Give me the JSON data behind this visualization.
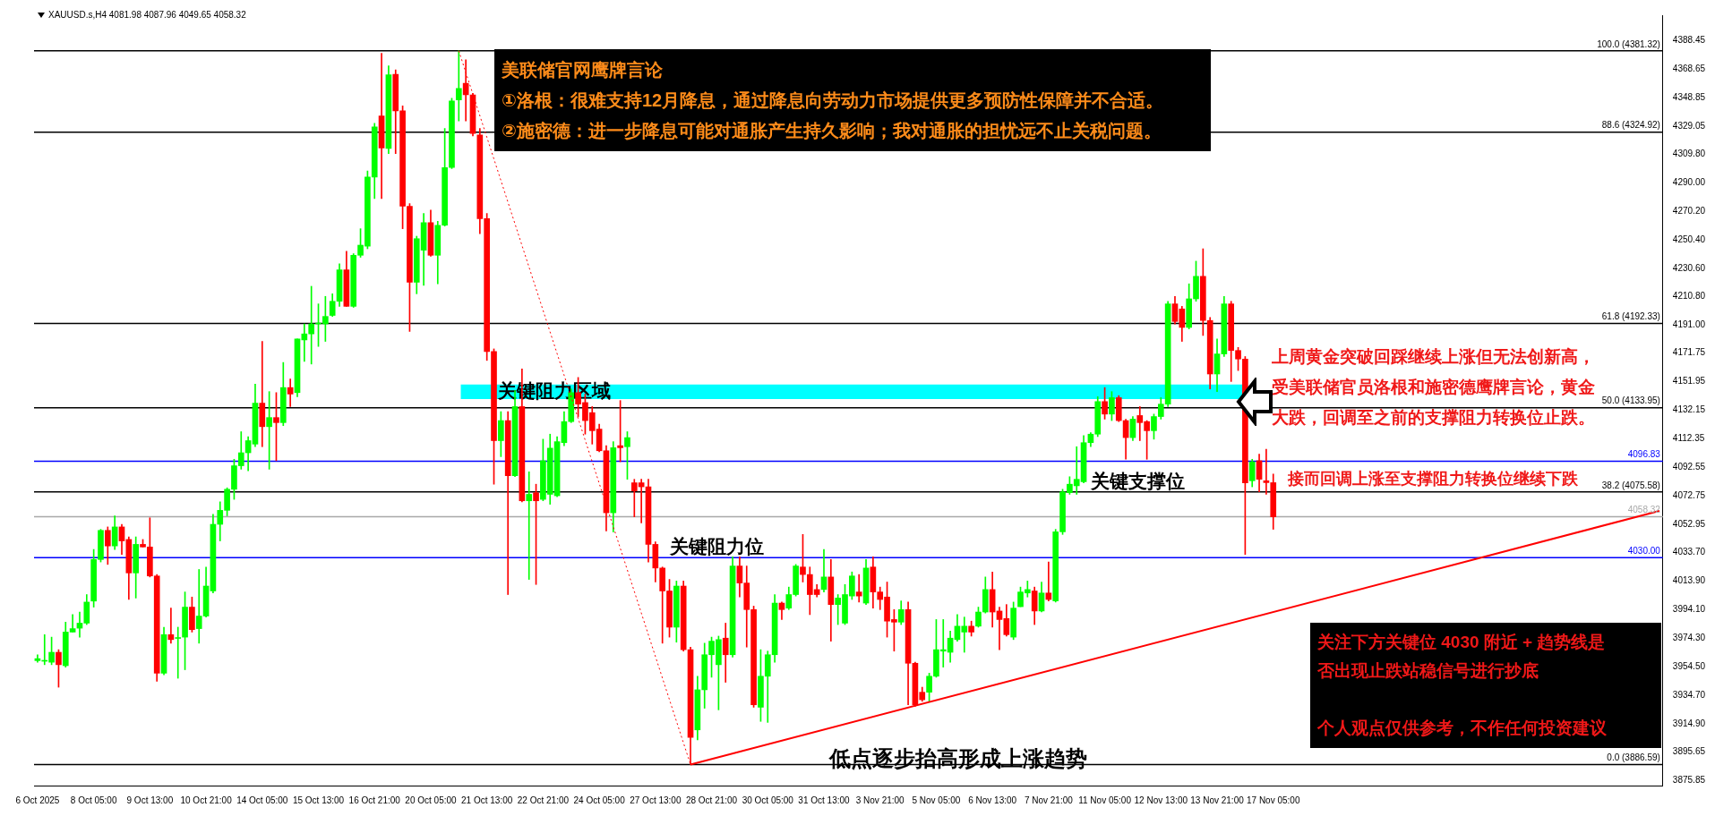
{
  "chart_data": {
    "type": "candlestick",
    "title": "XAUUSD.s,H4  4081.98 4087.96 4049.65 4058.32",
    "categories": [
      "6 Oct 2025",
      null,
      null,
      null,
      null,
      null,
      null,
      null,
      "8 Oct 05:00",
      null,
      null,
      null,
      null,
      null,
      null,
      null,
      "9 Oct 13:00",
      null,
      null,
      null,
      null,
      null,
      null,
      null,
      "10 Oct 21:00",
      null,
      null,
      null,
      null,
      null,
      null,
      null,
      "14 Oct 05:00",
      null,
      null,
      null,
      null,
      null,
      null,
      null,
      "15 Oct 13:00",
      null,
      null,
      null,
      null,
      null,
      null,
      null,
      "16 Oct 21:00",
      null,
      null,
      null,
      null,
      null,
      null,
      null,
      "20 Oct 05:00",
      null,
      null,
      null,
      null,
      null,
      null,
      null,
      "21 Oct 13:00",
      null,
      null,
      null,
      null,
      null,
      null,
      null,
      "22 Oct 21:00",
      null,
      null,
      null,
      null,
      null,
      null,
      null,
      "24 Oct 05:00",
      null,
      null,
      null,
      null,
      null,
      null,
      null,
      "27 Oct 13:00",
      null,
      null,
      null,
      null,
      null,
      null,
      null,
      "28 Oct 21:00",
      null,
      null,
      null,
      null,
      null,
      null,
      null,
      "30 Oct 05:00",
      null,
      null,
      null,
      null,
      null,
      null,
      null,
      "31 Oct 13:00",
      null,
      null,
      null,
      null,
      null,
      null,
      null,
      "3 Nov 21:00",
      null,
      null,
      null,
      null,
      null,
      null,
      null,
      "5 Nov 05:00",
      null,
      null,
      null,
      null,
      null,
      null,
      null,
      "6 Nov 13:00",
      null,
      null,
      null,
      null,
      null,
      null,
      null,
      "7 Nov 21:00",
      null,
      null,
      null,
      null,
      null,
      null,
      null,
      "11 Nov 05:00",
      null,
      null,
      null,
      null,
      null,
      null,
      null,
      "12 Nov 13:00",
      null,
      null,
      null,
      null,
      null,
      null,
      null,
      "13 Nov 21:00",
      null,
      null,
      null,
      null,
      null,
      null,
      null,
      "17 Nov 05:00",
      null,
      null,
      null,
      null,
      null,
      null,
      null,
      null,
      null,
      null,
      null,
      null,
      null,
      null,
      null,
      null,
      null,
      null,
      null,
      null,
      null,
      null,
      null,
      null,
      null,
      null,
      null,
      null,
      null,
      null,
      null,
      null,
      null,
      null,
      null,
      null,
      null,
      null,
      null,
      null,
      null,
      null,
      null,
      null,
      null,
      null,
      null,
      null,
      null,
      null,
      null,
      null,
      null,
      null,
      null
    ],
    "ohlc": [
      [
        3958.6,
        3962.7,
        3957.5,
        3960.0
      ],
      [
        3958.2,
        3976.6,
        3955.8,
        3958.4
      ],
      [
        3957.5,
        3974.9,
        3955.8,
        3964.4
      ],
      [
        3964.4,
        3966.2,
        3940.2,
        3955.8
      ],
      [
        3955.1,
        3985.3,
        3954.1,
        3978.4
      ],
      [
        3978.4,
        3990.5,
        3978.4,
        3980.8
      ],
      [
        3981.1,
        3992.3,
        3974.9,
        3984.6
      ],
      [
        3984.6,
        4004.4,
        3983.6,
        3999.2
      ],
      [
        3999.9,
        4035.7,
        3995.7,
        4028.7
      ],
      [
        4028.7,
        4049.6,
        4027.0,
        4048.9
      ],
      [
        4048.9,
        4051.3,
        4025.3,
        4038.1
      ],
      [
        4038.1,
        4059.0,
        4035.7,
        4051.3
      ],
      [
        4051.3,
        4053.1,
        4032.2,
        4041.6
      ],
      [
        4042.6,
        4044.4,
        4001.0,
        4019.4
      ],
      [
        4019.4,
        4044.4,
        4002.0,
        4039.2
      ],
      [
        4039.2,
        4042.6,
        4037.4,
        4037.4
      ],
      [
        4037.4,
        4057.6,
        4016.6,
        4017.3
      ],
      [
        4017.3,
        4018.3,
        3944.3,
        3949.9
      ],
      [
        3949.9,
        3981.8,
        3948.8,
        3976.6
      ],
      [
        3976.6,
        3995.0,
        3970.7,
        3973.2
      ],
      [
        3974.0,
        3981.8,
        3946.4,
        3974.5
      ],
      [
        3974.9,
        4006.2,
        3952.3,
        3995.7
      ],
      [
        3995.7,
        4002.7,
        3978.4,
        3980.1
      ],
      [
        3980.8,
        4021.8,
        3970.7,
        3989.5
      ],
      [
        3989.5,
        4023.5,
        3988.8,
        4010.3
      ],
      [
        4006.9,
        4060.0,
        4005.5,
        4053.1
      ],
      [
        4053.1,
        4068.7,
        4041.6,
        4062.8
      ],
      [
        4062.8,
        4078.4,
        4059.0,
        4077.4
      ],
      [
        4077.4,
        4098.2,
        4070.4,
        4093.7
      ],
      [
        4093.7,
        4117.3,
        4091.3,
        4102.7
      ],
      [
        4102.7,
        4113.9,
        4090.2,
        4111.1
      ],
      [
        4108.7,
        4150.3,
        4106.9,
        4137.1
      ],
      [
        4137.1,
        4179.9,
        4106.9,
        4120.8
      ],
      [
        4120.8,
        4145.1,
        4091.3,
        4127.1
      ],
      [
        4127.1,
        4144.4,
        4097.2,
        4123.6
      ],
      [
        4123.6,
        4165.3,
        4121.5,
        4147.9
      ],
      [
        4147.9,
        4153.8,
        4134.7,
        4143.4
      ],
      [
        4144.4,
        4181.6,
        4141.6,
        4181.6
      ],
      [
        4180.9,
        4192.0,
        4166.0,
        4185.1
      ],
      [
        4185.1,
        4218.1,
        4164.2,
        4192.0
      ],
      [
        4192.0,
        4205.9,
        4176.4,
        4192.2
      ],
      [
        4192.0,
        4211.1,
        4179.9,
        4197.2
      ],
      [
        4197.9,
        4212.9,
        4197.2,
        4207.7
      ],
      [
        4207.7,
        4233.7,
        4204.2,
        4229.5
      ],
      [
        4229.5,
        4242.4,
        4204.2,
        4204.2
      ],
      [
        4204.2,
        4240.7,
        4203.5,
        4239.6
      ],
      [
        4239.6,
        4258.0,
        4238.2,
        4246.6
      ],
      [
        4245.9,
        4298.0,
        4244.1,
        4293.8
      ],
      [
        4293.8,
        4331.0,
        4278.9,
        4328.6
      ],
      [
        4336.2,
        4379.6,
        4278.9,
        4313.9
      ],
      [
        4313.6,
        4370.9,
        4310.1,
        4364.7
      ],
      [
        4365.0,
        4368.1,
        4310.1,
        4339.7
      ],
      [
        4339.7,
        4343.1,
        4258.0,
        4273.6
      ],
      [
        4273.6,
        4275.4,
        4186.8,
        4220.9
      ],
      [
        4220.9,
        4252.8,
        4212.9,
        4251.1
      ],
      [
        4243.1,
        4268.5,
        4218.8,
        4262.2
      ],
      [
        4262.2,
        4270.9,
        4238.9,
        4239.6
      ],
      [
        4239.6,
        4263.2,
        4219.8,
        4260.4
      ],
      [
        4260.4,
        4327.5,
        4259.8,
        4300.4
      ],
      [
        4300.4,
        4348.4,
        4299.7,
        4346.6
      ],
      [
        4347.3,
        4381.32,
        4332.7,
        4355.3
      ],
      [
        4358.8,
        4375.1,
        4332.7,
        4350.8
      ],
      [
        4350.8,
        4351.8,
        4322.3,
        4324.0
      ],
      [
        4323.0,
        4327.5,
        4254.6,
        4265.0
      ],
      [
        4265.0,
        4268.5,
        4166.7,
        4172.9
      ],
      [
        4172.9,
        4174.7,
        4080.9,
        4111.1
      ],
      [
        4111.1,
        4131.2,
        4100.0,
        4125.0
      ],
      [
        4125.0,
        4131.2,
        4004.4,
        4086.8
      ],
      [
        4086.8,
        4145.8,
        4086.1,
        4134.7
      ],
      [
        4134.7,
        4160.8,
        4068.7,
        4069.4
      ],
      [
        4069.4,
        4089.5,
        4014.9,
        4073.9
      ],
      [
        4075.0,
        4080.9,
        4011.4,
        4069.4
      ],
      [
        4070.4,
        4112.1,
        4069.4,
        4097.2
      ],
      [
        4073.9,
        4115.6,
        4067.0,
        4105.9
      ],
      [
        4072.9,
        4113.9,
        4072.2,
        4110.4
      ],
      [
        4109.7,
        4131.2,
        4107.6,
        4124.3
      ],
      [
        4124.3,
        4146.9,
        4123.6,
        4144.4
      ],
      [
        4144.4,
        4154.9,
        4127.8,
        4136.4
      ],
      [
        4137.5,
        4143.4,
        4115.6,
        4125.0
      ],
      [
        4130.5,
        4134.7,
        4108.7,
        4118.0
      ],
      [
        4119.1,
        4122.5,
        4103.4,
        4104.1
      ],
      [
        4104.1,
        4107.6,
        4048.5,
        4061.1
      ],
      [
        4061.1,
        4110.4,
        4047.8,
        4106.2
      ],
      [
        4107.6,
        4138.9,
        4096.5,
        4106.2
      ],
      [
        4106.9,
        4117.3,
        4084.3,
        4113.2
      ],
      [
        4081.9,
        4084.3,
        4058.3,
        4076.3
      ],
      [
        4081.9,
        4084.3,
        4054.1,
        4079.1
      ],
      [
        4079.1,
        4084.3,
        4027.0,
        4039.2
      ],
      [
        4039.2,
        4040.9,
        4013.1,
        4022.8
      ],
      [
        4022.8,
        4023.5,
        3970.7,
        4006.9
      ],
      [
        4006.9,
        4014.9,
        3974.9,
        3981.8
      ],
      [
        3981.8,
        4013.8,
        3971.4,
        4010.3
      ],
      [
        4010.3,
        4013.8,
        3965.2,
        3966.2
      ],
      [
        3966.2,
        3967.9,
        3886.59,
        3905.4
      ],
      [
        3910.6,
        3947.8,
        3903.7,
        3938.4
      ],
      [
        3938.4,
        3970.7,
        3925.6,
        3962.7
      ],
      [
        3962.7,
        3974.9,
        3947.1,
        3972.1
      ],
      [
        3955.8,
        3975.6,
        3924.5,
        3973.2
      ],
      [
        3974.2,
        3984.6,
        3943.6,
        3962.7
      ],
      [
        3962.7,
        4030.5,
        3961.0,
        4024.2
      ],
      [
        4024.2,
        4030.5,
        4002.7,
        4012.4
      ],
      [
        4012.4,
        4024.2,
        3968.0,
        3994.0
      ],
      [
        3994.0,
        3996.4,
        3926.3,
        3928.0
      ],
      [
        3926.3,
        3966.2,
        3916.5,
        3947.8
      ],
      [
        3947.8,
        3965.2,
        3915.8,
        3962.7
      ],
      [
        3962.7,
        4004.4,
        3957.5,
        3998.5
      ],
      [
        3998.5,
        3999.2,
        3987.1,
        3994.0
      ],
      [
        3995.0,
        4009.6,
        3994.0,
        4004.4
      ],
      [
        4004.4,
        4025.3,
        4003.4,
        4024.2
      ],
      [
        4023.5,
        4046.1,
        4013.1,
        4018.3
      ],
      [
        4018.3,
        4023.5,
        3990.5,
        4004.4
      ],
      [
        4007.9,
        4011.4,
        4002.7,
        4004.4
      ],
      [
        4007.9,
        4035.7,
        4006.2,
        4016.6
      ],
      [
        4016.6,
        4028.7,
        3972.1,
        3997.5
      ],
      [
        3997.5,
        4004.4,
        3983.6,
        4002.0
      ],
      [
        3984.6,
        4011.4,
        3983.6,
        4004.4
      ],
      [
        4003.4,
        4020.1,
        4001.0,
        4017.3
      ],
      [
        4006.2,
        4018.3,
        3999.2,
        4003.4
      ],
      [
        3998.5,
        4028.7,
        3997.5,
        4022.8
      ],
      [
        4023.5,
        4030.5,
        3995.0,
        4006.2
      ],
      [
        4006.2,
        4009.6,
        3994.0,
        4001.0
      ],
      [
        4002.7,
        4013.1,
        3974.9,
        3986.0
      ],
      [
        3987.1,
        3994.0,
        3965.2,
        3985.3
      ],
      [
        3985.3,
        4000.0,
        3983.6,
        3994.0
      ],
      [
        3994.0,
        3999.2,
        3928.0,
        3956.8
      ],
      [
        3956.8,
        3957.5,
        3927.0,
        3928.0
      ],
      [
        3936.7,
        3940.2,
        3930.4,
        3931.5
      ],
      [
        3936.7,
        3949.9,
        3930.4,
        3947.8
      ],
      [
        3947.8,
        3987.1,
        3947.1,
        3966.2
      ],
      [
        3965.2,
        3987.1,
        3954.1,
        3966.2
      ],
      [
        3964.4,
        3979.1,
        3957.5,
        3974.2
      ],
      [
        3973.2,
        3990.5,
        3972.1,
        3982.5
      ],
      [
        3978.4,
        3988.8,
        3964.4,
        3982.5
      ],
      [
        3982.5,
        3986.0,
        3975.6,
        3978.4
      ],
      [
        3982.5,
        3995.7,
        3981.8,
        3992.3
      ],
      [
        3992.3,
        4016.6,
        3991.6,
        4007.9
      ],
      [
        4007.9,
        4020.1,
        3981.8,
        3992.3
      ],
      [
        3993.0,
        3995.7,
        3966.2,
        3987.1
      ],
      [
        3987.8,
        3997.5,
        3975.6,
        3976.6
      ],
      [
        3974.9,
        3999.2,
        3973.2,
        3995.0
      ],
      [
        3996.0,
        4009.6,
        3996.0,
        4006.2
      ],
      [
        4005.5,
        4013.8,
        4002.7,
        4007.9
      ],
      [
        4006.9,
        4009.6,
        3983.6,
        3993.0
      ],
      [
        3993.0,
        4013.1,
        3992.3,
        4005.5
      ],
      [
        4005.5,
        4027.0,
        4000.0,
        4001.0
      ],
      [
        4000.0,
        4049.6,
        3999.2,
        4047.9
      ],
      [
        4047.9,
        4077.4,
        4046.1,
        4075.6
      ],
      [
        4075.0,
        4086.1,
        4073.9,
        4080.9
      ],
      [
        4079.8,
        4106.9,
        4073.9,
        4084.3
      ],
      [
        4082.6,
        4114.6,
        4081.9,
        4109.7
      ],
      [
        4109.7,
        4116.6,
        4106.9,
        4115.6
      ],
      [
        4115.6,
        4141.6,
        4113.9,
        4138.2
      ],
      [
        4138.2,
        4147.9,
        4126.0,
        4129.5
      ],
      [
        4129.5,
        4145.1,
        4125.0,
        4140.9
      ],
      [
        4140.9,
        4142.3,
        4124.3,
        4125.0
      ],
      [
        4125.0,
        4126.0,
        4098.2,
        4113.2
      ],
      [
        4113.2,
        4127.8,
        4111.1,
        4126.0
      ],
      [
        4128.5,
        4134.7,
        4111.1,
        4123.6
      ],
      [
        4124.3,
        4125.0,
        4098.2,
        4118.0
      ],
      [
        4118.0,
        4129.5,
        4112.1,
        4127.8
      ],
      [
        4127.8,
        4140.9,
        4126.0,
        4136.4
      ],
      [
        4136.4,
        4207.7,
        4134.7,
        4205.9
      ],
      [
        4205.9,
        4211.1,
        4192.0,
        4193.7
      ],
      [
        4202.4,
        4204.2,
        4179.9,
        4189.6
      ],
      [
        4189.6,
        4219.8,
        4188.5,
        4209.4
      ],
      [
        4209.4,
        4235.5,
        4207.7,
        4225.0
      ],
      [
        4225.0,
        4244.1,
        4184.0,
        4194.4
      ],
      [
        4194.4,
        4196.5,
        4146.9,
        4157.3
      ],
      [
        4157.3,
        4181.6,
        4145.1,
        4171.2
      ],
      [
        4171.2,
        4211.1,
        4169.4,
        4205.9
      ],
      [
        4205.9,
        4207.7,
        4152.1,
        4173.6
      ],
      [
        4173.6,
        4175.7,
        4159.7,
        4167.7
      ],
      [
        4167.7,
        4169.4,
        4032.2,
        4081.9
      ],
      [
        4083.3,
        4098.2,
        4079.1,
        4096.5
      ],
      [
        4097.2,
        4101.7,
        4075.6,
        4084.3
      ],
      [
        4083.3,
        4105.2,
        4073.9,
        4082.0
      ],
      [
        4081.98,
        4087.96,
        4049.65,
        4058.32
      ],
      null,
      null,
      null,
      null,
      null,
      null,
      null,
      null,
      null,
      null,
      null,
      null,
      null,
      null,
      null,
      null,
      null,
      null,
      null,
      null,
      null,
      null,
      null,
      null,
      null,
      null,
      null,
      null,
      null,
      null,
      null,
      null,
      null,
      null,
      null,
      null,
      null,
      null,
      null,
      null,
      null,
      null,
      null,
      null,
      null,
      null,
      null,
      null,
      null,
      null,
      null,
      null,
      null,
      null,
      null
    ],
    "colors": [
      "#00ff00",
      "#00ff00",
      "#00ff00",
      "#ff0000",
      "#00ff00",
      "#00ff00",
      "#00ff00",
      "#00ff00",
      "#00ff00",
      "#00ff00",
      "#ff0000",
      "#00ff00",
      "#ff0000",
      "#ff0000",
      "#00ff00",
      "#ff0000",
      "#ff0000",
      "#ff0000",
      "#00ff00",
      "#ff0000",
      "#00ff00",
      "#00ff00",
      "#ff0000",
      "#00ff00",
      "#00ff00",
      "#00ff00",
      "#00ff00",
      "#00ff00",
      "#00ff00",
      "#00ff00",
      "#00ff00",
      "#00ff00",
      "#ff0000",
      "#00ff00",
      "#ff0000",
      "#00ff00",
      "#ff0000",
      "#00ff00",
      "#00ff00",
      "#00ff00",
      "#00ff00",
      "#00ff00",
      "#00ff00",
      "#00ff00",
      "#ff0000",
      "#00ff00",
      "#00ff00",
      "#00ff00",
      "#00ff00",
      "#ff0000",
      "#00ff00",
      "#ff0000",
      "#ff0000",
      "#ff0000",
      "#00ff00",
      "#00ff00",
      "#ff0000",
      "#00ff00",
      "#00ff00",
      "#00ff00",
      "#00ff00",
      "#ff0000",
      "#ff0000",
      "#ff0000",
      "#ff0000",
      "#ff0000",
      "#00ff00",
      "#ff0000",
      "#00ff00",
      "#ff0000",
      "#00ff00",
      "#ff0000",
      "#00ff00",
      "#00ff00",
      "#00ff00",
      "#00ff00",
      "#00ff00",
      "#ff0000",
      "#ff0000",
      "#ff0000",
      "#ff0000",
      "#ff0000",
      "#00ff00",
      "#ff0000",
      "#00ff00",
      "#ff0000",
      "#ff0000",
      "#ff0000",
      "#ff0000",
      "#ff0000",
      "#ff0000",
      "#00ff00",
      "#ff0000",
      "#ff0000",
      "#00ff00",
      "#00ff00",
      "#00ff00",
      "#00ff00",
      "#ff0000",
      "#00ff00",
      "#ff0000",
      "#ff0000",
      "#ff0000",
      "#00ff00",
      "#00ff00",
      "#00ff00",
      "#ff0000",
      "#00ff00",
      "#00ff00",
      "#ff0000",
      "#ff0000",
      "#ff0000",
      "#00ff00",
      "#ff0000",
      "#00ff00",
      "#00ff00",
      "#00ff00",
      "#ff0000",
      "#00ff00",
      "#ff0000",
      "#ff0000",
      "#ff0000",
      "#ff0000",
      "#00ff00",
      "#ff0000",
      "#ff0000",
      "#ff0000",
      "#00ff00",
      "#00ff00",
      "#00ff00",
      "#00ff00",
      "#00ff00",
      "#00ff00",
      "#ff0000",
      "#00ff00",
      "#00ff00",
      "#ff0000",
      "#ff0000",
      "#ff0000",
      "#00ff00",
      "#00ff00",
      "#00ff00",
      "#ff0000",
      "#00ff00",
      "#ff0000",
      "#00ff00",
      "#00ff00",
      "#00ff00",
      "#00ff00",
      "#00ff00",
      "#00ff00",
      "#00ff00",
      "#ff0000",
      "#00ff00",
      "#ff0000",
      "#ff0000",
      "#00ff00",
      "#ff0000",
      "#ff0000",
      "#00ff00",
      "#00ff00",
      "#00ff00",
      "#ff0000",
      "#ff0000",
      "#00ff00",
      "#00ff00",
      "#ff0000",
      "#ff0000",
      "#00ff00",
      "#00ff00",
      "#ff0000",
      "#ff0000",
      "#ff0000",
      "#00ff00",
      "#ff0000",
      "#ff0000",
      "#ff0000",
      null,
      null,
      null,
      null,
      null,
      null,
      null,
      null,
      null,
      null,
      null,
      null,
      null,
      null,
      null,
      null,
      null,
      null,
      null,
      null,
      null,
      null,
      null,
      null,
      null,
      null,
      null,
      null,
      null,
      null,
      null,
      null,
      null,
      null,
      null,
      null,
      null,
      null,
      null,
      null,
      null,
      null,
      null,
      null,
      null,
      null,
      null,
      null,
      null,
      null,
      null,
      null,
      null,
      null,
      null
    ],
    "series": [
      {
        "type": "line",
        "color": "#ff0000",
        "line_style": "solid",
        "values": [
          null,
          null,
          null,
          null,
          null,
          null,
          null,
          null,
          null,
          null,
          null,
          null,
          null,
          null,
          null,
          null,
          null,
          null,
          null,
          null,
          null,
          null,
          null,
          null,
          null,
          null,
          null,
          null,
          null,
          null,
          null,
          null,
          null,
          null,
          null,
          null,
          null,
          null,
          null,
          null,
          null,
          null,
          null,
          null,
          null,
          null,
          null,
          null,
          null,
          null,
          null,
          null,
          null,
          null,
          null,
          null,
          null,
          null,
          null,
          null,
          null,
          null,
          null,
          null,
          null,
          null,
          null,
          null,
          null,
          null,
          null,
          null,
          null,
          null,
          null,
          null,
          null,
          null,
          null,
          null,
          null,
          null,
          null,
          null,
          null,
          null,
          null,
          null,
          null,
          null,
          null,
          null,
          null,
          3886.59,
          null,
          null,
          null,
          null,
          null,
          null,
          null,
          null,
          null,
          null,
          null,
          null,
          null,
          null,
          null,
          null,
          null,
          null,
          null,
          null,
          null,
          null,
          null,
          null,
          null,
          null,
          null,
          null,
          null,
          null,
          null,
          null,
          null,
          null,
          null,
          null,
          null,
          null,
          null,
          null,
          null,
          null,
          null,
          null,
          null,
          null,
          null,
          null,
          null,
          null,
          null,
          null,
          null,
          null,
          null,
          null,
          null,
          null,
          null,
          null,
          null,
          null,
          null,
          null,
          null,
          null,
          null,
          null,
          null,
          null,
          null,
          null,
          null,
          null,
          null,
          null,
          null,
          null,
          null,
          null,
          null,
          null,
          null,
          null,
          null,
          null,
          null,
          null,
          null,
          null,
          null,
          null,
          null,
          null,
          null,
          null,
          null,
          null,
          null,
          null,
          null,
          null,
          null,
          null,
          null,
          null,
          null,
          null,
          null,
          null,
          null,
          null,
          null,
          null,
          null,
          null,
          null,
          null,
          null,
          null,
          null,
          null,
          null,
          null,
          null,
          null,
          null,
          null,
          null,
          null,
          null,
          null,
          null,
          null,
          null,
          null,
          null,
          4062.4
        ]
      },
      {
        "type": "line",
        "color": "#ff0000",
        "line_style": "dotted",
        "values": [
          null,
          null,
          null,
          null,
          null,
          null,
          null,
          null,
          null,
          null,
          null,
          null,
          null,
          null,
          null,
          null,
          null,
          null,
          null,
          null,
          null,
          null,
          null,
          null,
          null,
          null,
          null,
          null,
          null,
          null,
          null,
          null,
          null,
          null,
          null,
          null,
          null,
          null,
          null,
          null,
          null,
          null,
          null,
          null,
          null,
          null,
          null,
          null,
          null,
          null,
          null,
          null,
          null,
          null,
          null,
          null,
          null,
          null,
          null,
          null,
          4381.32,
          null,
          null,
          null,
          null,
          null,
          null,
          null,
          null,
          null,
          null,
          null,
          null,
          null,
          null,
          null,
          null,
          null,
          null,
          null,
          null,
          null,
          null,
          null,
          null,
          null,
          null,
          null,
          null,
          null,
          null,
          null,
          null,
          3886.59,
          null,
          null,
          null,
          null,
          null,
          null,
          null,
          null,
          null,
          null,
          null,
          null,
          null,
          null,
          null,
          null,
          null,
          null,
          null,
          null,
          null,
          null,
          null,
          null,
          null,
          null,
          null,
          null,
          null,
          null,
          null,
          null,
          null,
          null,
          null,
          null,
          null,
          null,
          null,
          null,
          null,
          null,
          null,
          null,
          null,
          null,
          null,
          null,
          null,
          null,
          null,
          null,
          null,
          null,
          null,
          null,
          null,
          null,
          null,
          null,
          null,
          null,
          null,
          null,
          null,
          null,
          null,
          null,
          null,
          null,
          null,
          null,
          null,
          null,
          null,
          null,
          null,
          null,
          null,
          null,
          null,
          null,
          null,
          null,
          null,
          null,
          null,
          null,
          null,
          null,
          null,
          null,
          null,
          null,
          null,
          null,
          null,
          null,
          null,
          null,
          null,
          null,
          null,
          null,
          null,
          null,
          null,
          null,
          null,
          null,
          null,
          null,
          null,
          null,
          null,
          null,
          null,
          null,
          null,
          null,
          null,
          null,
          null,
          null,
          null,
          null,
          null,
          null,
          null,
          null,
          null,
          null,
          null,
          null,
          null,
          null,
          null,
          null
        ]
      }
    ],
    "ylim": [
      3872,
      4406
    ],
    "yticks": [
      {
        "value": 4388.45,
        "label": "4388.45"
      },
      {
        "value": 4368.65,
        "label": "4368.65"
      },
      {
        "value": 4348.85,
        "label": "4348.85"
      },
      {
        "value": 4329.05,
        "label": "4329.05"
      },
      {
        "value": 4309.8,
        "label": "4309.80"
      },
      {
        "value": 4290,
        "label": "4290.00"
      },
      {
        "value": 4270.2,
        "label": "4270.20"
      },
      {
        "value": 4250.4,
        "label": "4250.40"
      },
      {
        "value": 4230.6,
        "label": "4230.60"
      },
      {
        "value": 4210.8,
        "label": "4210.80"
      },
      {
        "value": 4191,
        "label": "4191.00"
      },
      {
        "value": 4171.75,
        "label": "4171.75"
      },
      {
        "value": 4151.95,
        "label": "4151.95"
      },
      {
        "value": 4132.15,
        "label": "4132.15"
      },
      {
        "value": 4112.35,
        "label": "4112.35"
      },
      {
        "value": 4092.55,
        "label": "4092.55"
      },
      {
        "value": 4072.75,
        "label": "4072.75"
      },
      {
        "value": 4052.95,
        "label": "4052.95"
      },
      {
        "value": 4033.7,
        "label": "4033.70"
      },
      {
        "value": 4013.9,
        "label": "4013.90"
      },
      {
        "value": 3994.1,
        "label": "3994.10"
      },
      {
        "value": 3974.3,
        "label": "3974.30"
      },
      {
        "value": 3954.5,
        "label": "3954.50"
      },
      {
        "value": 3934.7,
        "label": "3934.70"
      },
      {
        "value": 3914.9,
        "label": "3914.90"
      },
      {
        "value": 3895.65,
        "label": "3895.65"
      },
      {
        "value": 3875.85,
        "label": "3875.85"
      }
    ],
    "ref_lines": [
      {
        "axis": "y",
        "value": 4381.32,
        "label": "100.0 (4381.32)",
        "color": "#000000"
      },
      {
        "axis": "y",
        "value": 4324.92,
        "label": "88.6 (4324.92)",
        "color": "#000000"
      },
      {
        "axis": "y",
        "value": 4192.33,
        "label": "61.8 (4192.33)",
        "color": "#000000"
      },
      {
        "axis": "y",
        "value": 4133.95,
        "label": "50.0 (4133.95)",
        "color": "#000000"
      },
      {
        "axis": "y",
        "value": 4075.58,
        "label": "38.2 (4075.58)",
        "color": "#000000"
      },
      {
        "axis": "y",
        "value": 3886.59,
        "label": "0.0 (3886.59)",
        "color": "#000000"
      },
      {
        "axis": "y",
        "value": 4096.83,
        "label": "4096.83",
        "color": "#0000ff"
      },
      {
        "axis": "y",
        "value": 4030,
        "label": "4030.00",
        "color": "#0000ff"
      },
      {
        "axis": "y",
        "value": 4058.32,
        "label": "4058.32",
        "color": "#a8a8a8"
      }
    ],
    "bands": [
      {
        "axis": "y",
        "from": 4140,
        "to": 4150,
        "label": "关键阻力区域",
        "color": "#00ffff"
      }
    ],
    "annotations": [
      "美联储官网鹰牌言论",
      "①洛根：很难支持12月降息，通过降息向劳动力市场提供更多预防性保障并不合适。",
      "②施密德：进一步降息可能对通胀产生持久影响；我对通胀的担忧远不止关税问题。",
      "关键阻力位",
      "关键支撑位",
      "低点逐步抬高形成上涨趋势",
      "上周黄金突破回踩继续上涨但无法创新高，",
      "受美联储官员洛根和施密德鹰牌言论，黄金",
      "大跌，回调至之前的支撑阻力转换位止跌。",
      "接而回调上涨至支撑阻力转换位继续下跌",
      "关注下方关键位 4030 附近 + 趋势线是",
      "否出现止跌站稳信号进行抄底",
      "个人观点仅供参考，不作任何投资建议"
    ]
  }
}
